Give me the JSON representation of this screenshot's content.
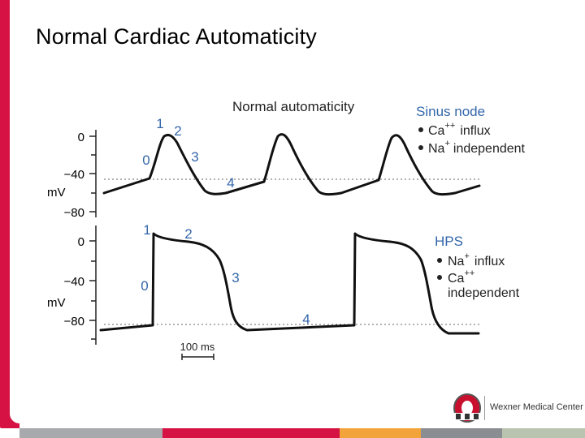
{
  "slide": {
    "title": "Normal Cardiac Automaticity"
  },
  "figure": {
    "panel_title": "Normal automaticity",
    "axis": {
      "top_ticks": [
        "0",
        "−40",
        "−80"
      ],
      "bottom_ticks": [
        "0",
        "−40",
        "−80"
      ],
      "unit": "mV"
    },
    "phases_top": [
      "0",
      "1",
      "2",
      "3",
      "4"
    ],
    "phases_bottom": [
      "0",
      "1",
      "2",
      "3",
      "4"
    ],
    "sinus_node": {
      "heading": "Sinus node",
      "bullets": [
        {
          "ion": "Ca",
          "charge": "++",
          "rest": "influx"
        },
        {
          "ion": "Na",
          "charge": "+",
          "rest": "independent"
        }
      ]
    },
    "hps": {
      "heading": "HPS",
      "bullets": [
        {
          "ion": "Na",
          "charge": "+",
          "rest": "influx"
        },
        {
          "ion": "Ca",
          "charge": "++",
          "rest": ""
        }
      ],
      "continuation": "independent"
    },
    "scale_bar": "100 ms"
  },
  "logo": {
    "text": "Wexner Medical Center"
  },
  "colors": {
    "accent_red": "#d51243",
    "label_blue": "#3366aa",
    "strip": [
      "#a7a9ac",
      "#d51243",
      "#f2a33a",
      "#8a8d91",
      "#b9c4b0"
    ]
  }
}
